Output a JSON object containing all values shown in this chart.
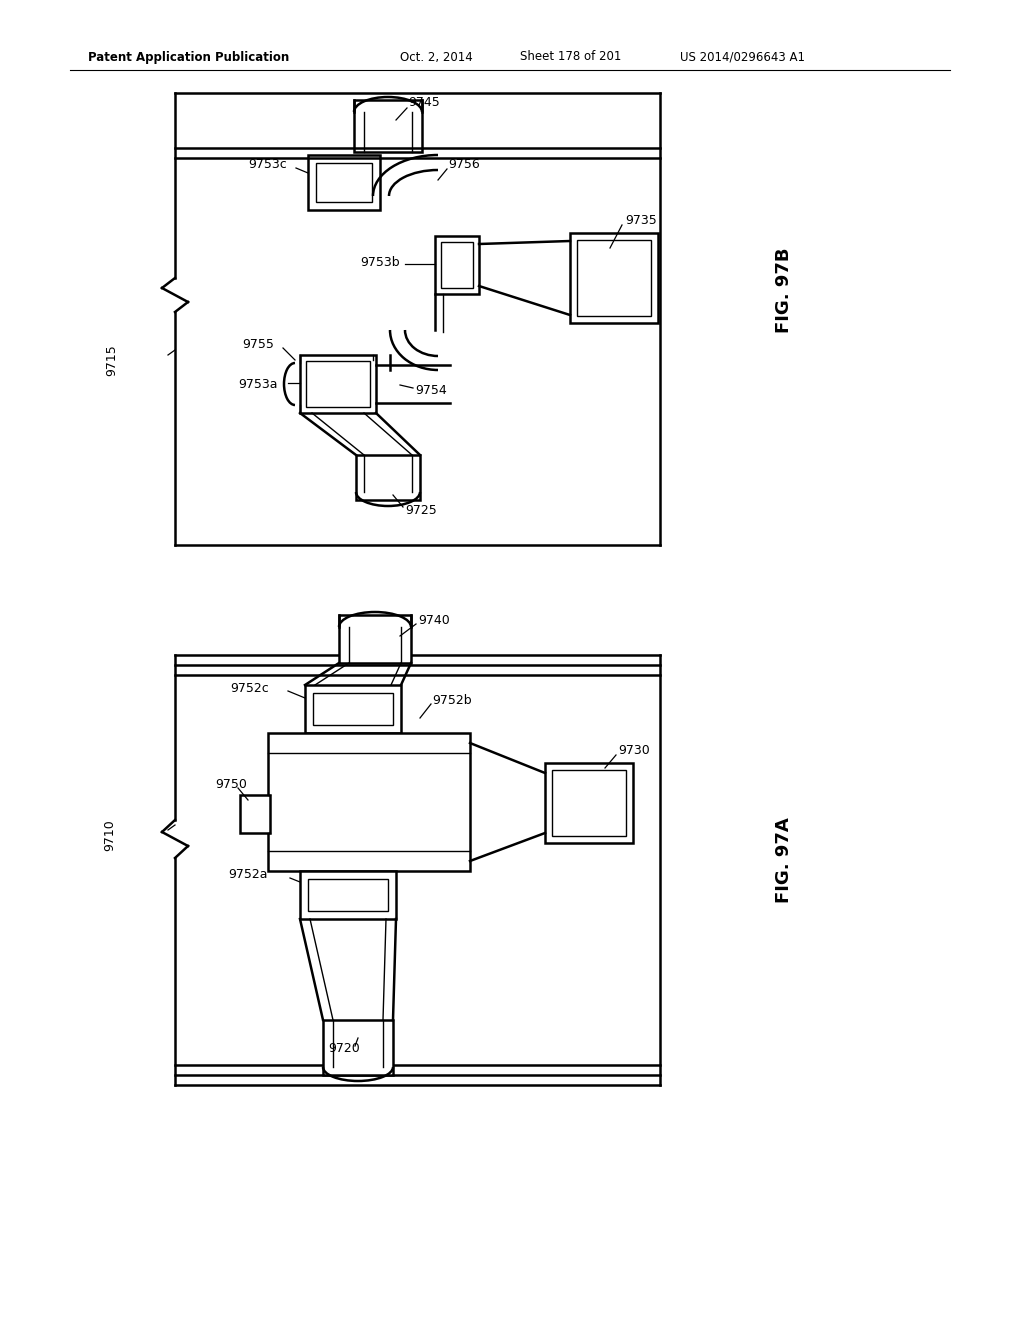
{
  "background_color": "#ffffff",
  "header_text": "Patent Application Publication",
  "header_date": "Oct. 2, 2014",
  "header_sheet": "Sheet 178 of 201",
  "header_patent": "US 2014/0296643 A1",
  "fig_label_A": "FIG. 97A",
  "fig_label_B": "FIG. 97B",
  "line_color": "#000000",
  "lw_thin": 1.0,
  "lw_medium": 1.8,
  "lw_thick": 2.5
}
